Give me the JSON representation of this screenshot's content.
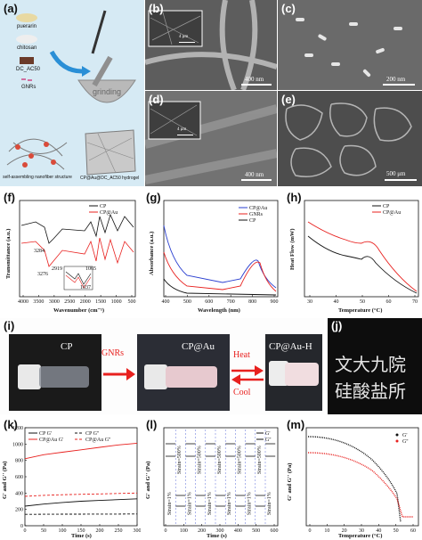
{
  "panels": {
    "a": {
      "label": "(a)",
      "items": [
        "puerarin",
        "chitosan",
        "DC_AC50",
        "GNRs"
      ],
      "action": "grinding",
      "left_caption": "self-assembling nanofiber structure",
      "right_caption": "CP@Au@DC_AC50 hydrogel"
    },
    "b": {
      "label": "(b)",
      "inset_scale": "4 μm",
      "scale": "400 nm"
    },
    "c": {
      "label": "(c)",
      "scale": "200 nm"
    },
    "d": {
      "label": "(d)",
      "inset_scale": "4 μm",
      "scale": "400 nm"
    },
    "e": {
      "label": "(e)",
      "scale": "500 μm"
    },
    "f": {
      "label": "(f)"
    },
    "g": {
      "label": "(g)"
    },
    "h": {
      "label": "(h)"
    },
    "i": {
      "label": "(i)",
      "vials": [
        "CP",
        "CP@Au",
        "CP@Au-H"
      ],
      "arrow1": "GNRs",
      "arrow2_top": "Heat",
      "arrow2_bottom": "Cool"
    },
    "j": {
      "label": "(j)",
      "line1": "文大九院",
      "line2": "硅酸盐所"
    },
    "k": {
      "label": "(k)"
    },
    "l": {
      "label": "(l)"
    },
    "m": {
      "label": "(m)"
    }
  },
  "chart_data": [
    {
      "id": "f",
      "type": "line",
      "xlabel": "Wavenumber (cm⁻¹)",
      "ylabel": "Transmittance (a.u.)",
      "xticks": [
        "4000",
        "3500",
        "3000",
        "2500",
        "2000",
        "1500",
        "1000",
        "500"
      ],
      "series": [
        {
          "name": "CP",
          "color": "#111111"
        },
        {
          "name": "CP@Au",
          "color": "#e8201e"
        }
      ],
      "annotations": [
        "3284",
        "3276",
        "2919",
        "1065",
        "1037"
      ]
    },
    {
      "id": "g",
      "type": "line",
      "xlabel": "Wavelength (nm)",
      "ylabel": "Absorbance (a.u.)",
      "xticks": [
        "400",
        "500",
        "600",
        "700",
        "800",
        "900"
      ],
      "series": [
        {
          "name": "CP@Au",
          "color": "#2a3fd0"
        },
        {
          "name": "GNRs",
          "color": "#e8201e"
        },
        {
          "name": "CP",
          "color": "#111111"
        }
      ]
    },
    {
      "id": "h",
      "type": "line",
      "xlabel": "Temperature (°C)",
      "ylabel": "Heat Flow (mW)",
      "xticks": [
        "30",
        "40",
        "50",
        "60",
        "70"
      ],
      "series": [
        {
          "name": "CP",
          "color": "#111111"
        },
        {
          "name": "CP@Au",
          "color": "#e8201e"
        }
      ]
    },
    {
      "id": "k",
      "type": "line",
      "xlabel": "Time (s)",
      "ylabel": "G' and G'' (Pa)",
      "xticks": [
        "0",
        "50",
        "100",
        "150",
        "200",
        "250",
        "300"
      ],
      "yticks": [
        "0",
        "200",
        "400",
        "600",
        "800",
        "1000",
        "1200"
      ],
      "ylim": [
        0,
        1200
      ],
      "xlim": [
        0,
        300
      ],
      "series": [
        {
          "name": "CP G'",
          "color": "#111111",
          "style": "solid",
          "x": [
            0,
            50,
            100,
            150,
            200,
            250,
            300
          ],
          "values": [
            240,
            265,
            285,
            300,
            310,
            320,
            330
          ]
        },
        {
          "name": "CP G''",
          "color": "#111111",
          "style": "dashed",
          "x": [
            0,
            50,
            100,
            150,
            200,
            250,
            300
          ],
          "values": [
            140,
            141,
            142,
            142,
            143,
            143,
            144
          ]
        },
        {
          "name": "CP@Au G'",
          "color": "#e8201e",
          "style": "solid",
          "x": [
            0,
            50,
            100,
            150,
            200,
            250,
            300
          ],
          "values": [
            820,
            870,
            900,
            930,
            960,
            990,
            1010
          ]
        },
        {
          "name": "CP@Au G''",
          "color": "#e8201e",
          "style": "dashed",
          "x": [
            0,
            50,
            100,
            150,
            200,
            250,
            300
          ],
          "values": [
            360,
            372,
            380,
            385,
            390,
            395,
            400
          ]
        }
      ]
    },
    {
      "id": "l",
      "type": "line",
      "xlabel": "Time (s)",
      "ylabel": "G' and G'' (Pa)",
      "xticks": [
        "0",
        "100",
        "200",
        "300",
        "400",
        "500",
        "600"
      ],
      "yscale": "log",
      "series": [
        {
          "name": "G'",
          "color": "#111111"
        },
        {
          "name": "G''",
          "color": "#111111"
        }
      ],
      "annotations": [
        "Strain=1%",
        "Strain=500%"
      ]
    },
    {
      "id": "m",
      "type": "line",
      "xlabel": "Temperature (°C)",
      "ylabel": "G' and G'' (Pa)",
      "xticks": [
        "0",
        "10",
        "20",
        "30",
        "40",
        "50",
        "60"
      ],
      "yscale": "log",
      "series": [
        {
          "name": "G'",
          "color": "#111111"
        },
        {
          "name": "G''",
          "color": "#e8201e"
        }
      ]
    }
  ]
}
